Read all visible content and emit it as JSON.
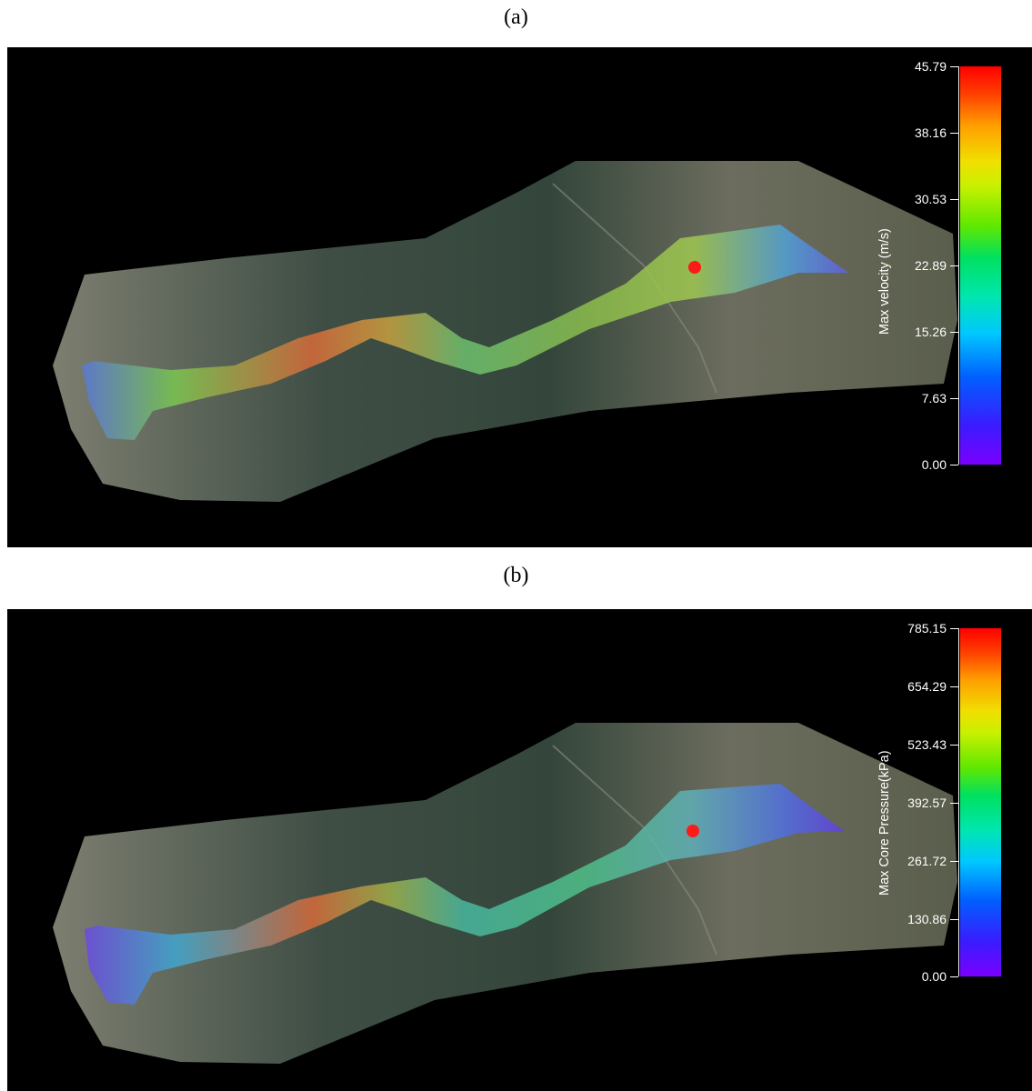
{
  "panels": [
    {
      "caption": "(a)",
      "colorbar": {
        "title": "Max velocity (m/s)",
        "ticks": [
          "45.79",
          "38.16",
          "30.53",
          "22.89",
          "15.26",
          "7.63",
          "0.00"
        ],
        "min_color": "#7a00ff",
        "max_color": "#ff0000"
      },
      "marker_color": "#ff1a1a"
    },
    {
      "caption": "(b)",
      "colorbar": {
        "title": "Max Core Pressure(kPa)",
        "ticks": [
          "785.15",
          "654.29",
          "523.43",
          "392.57",
          "261.72",
          "130.86",
          "0.00"
        ],
        "min_color": "#7a00ff",
        "max_color": "#ff0000"
      },
      "marker_color": "#ff1a1a"
    }
  ]
}
